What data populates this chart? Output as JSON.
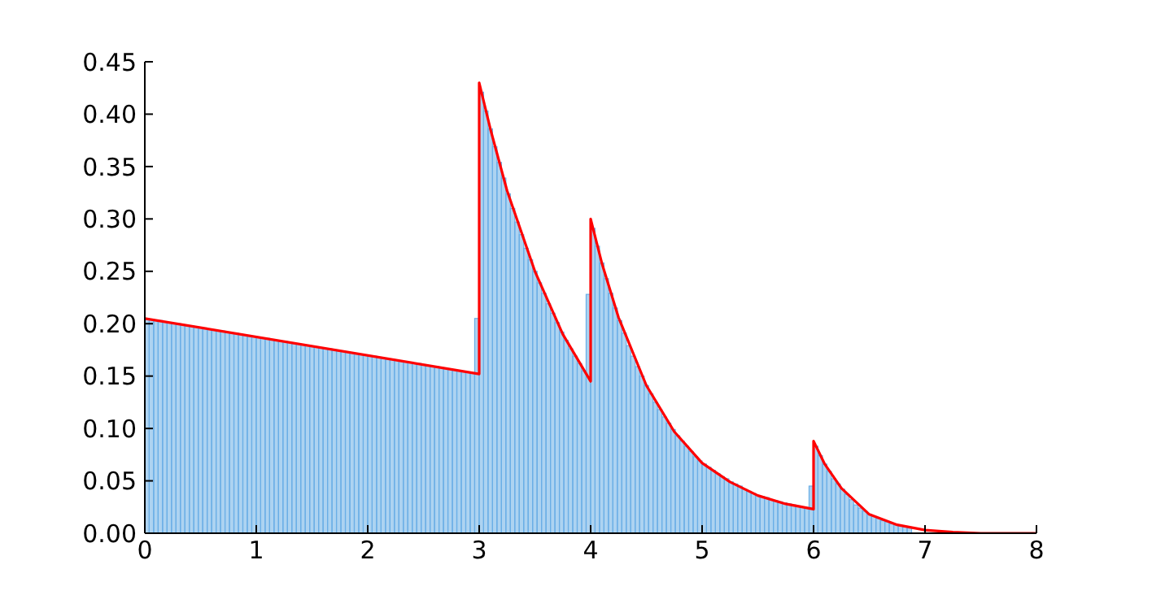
{
  "chart_data": {
    "type": "histogram",
    "color": "#6aaee6",
    "bins": [
      0,
      0.04,
      0.08,
      0.12,
      0.16,
      0.2,
      0.24,
      0.28,
      0.32,
      0.36,
      0.4,
      0.44,
      0.48,
      0.52,
      0.56,
      0.6,
      0.64,
      0.68,
      0.72,
      0.76,
      0.8,
      0.84,
      0.88,
      0.92,
      0.96,
      1,
      1.04,
      1.08,
      1.12,
      1.16,
      1.2,
      1.24,
      1.28,
      1.32,
      1.36,
      1.4,
      1.44,
      1.48,
      1.52,
      1.56,
      1.6,
      1.64,
      1.68,
      1.72,
      1.76,
      1.8,
      1.84,
      1.88,
      1.92,
      1.96,
      2,
      2.04,
      2.08,
      2.12,
      2.16,
      2.2,
      2.24,
      2.28,
      2.32,
      2.36,
      2.4,
      2.44,
      2.48,
      2.52,
      2.56,
      2.6,
      2.64,
      2.68,
      2.72,
      2.76,
      2.8,
      2.84,
      2.88,
      2.92,
      2.96,
      3,
      3.04,
      3.08,
      3.12,
      3.16,
      3.2,
      3.24,
      3.28,
      3.32,
      3.36,
      3.4,
      3.44,
      3.48,
      3.52,
      3.56,
      3.6,
      3.64,
      3.68,
      3.72,
      3.76,
      3.8,
      3.84,
      3.88,
      3.92,
      3.96,
      4,
      4.04,
      4.08,
      4.12,
      4.16,
      4.2,
      4.24,
      4.28,
      4.32,
      4.36,
      4.4,
      4.44,
      4.48,
      4.52,
      4.56,
      4.6,
      4.64,
      4.68,
      4.72,
      4.76,
      4.8,
      4.84,
      4.88,
      4.92,
      4.96,
      5,
      5.04,
      5.08,
      5.12,
      5.16,
      5.2,
      5.24,
      5.28,
      5.32,
      5.36,
      5.4,
      5.44,
      5.48,
      5.52,
      5.56,
      5.6,
      5.64,
      5.68,
      5.72,
      5.76,
      5.8,
      5.84,
      5.88,
      5.92,
      5.96,
      6,
      6.04,
      6.08,
      6.12,
      6.16,
      6.2,
      6.24,
      6.28,
      6.32,
      6.36,
      6.4,
      6.44,
      6.48,
      6.52,
      6.56,
      6.6,
      6.64,
      6.68,
      6.72,
      6.76,
      6.8,
      6.84,
      6.88,
      6.92,
      6.96,
      7,
      7.04,
      7.08,
      7.12,
      7.16,
      7.2,
      7.24,
      7.28,
      7.32,
      7.36,
      7.4,
      7.44,
      7.48,
      7.52,
      7.56,
      7.6,
      7.64,
      7.68,
      7.72,
      7.76,
      7.8,
      7.84,
      7.88,
      7.92,
      7.96,
      8
    ],
    "values": [
      0.205,
      0.204,
      0.203,
      0.203,
      0.202,
      0.201,
      0.2,
      0.2,
      0.199,
      0.198,
      0.198,
      0.197,
      0.196,
      0.195,
      0.195,
      0.194,
      0.193,
      0.193,
      0.192,
      0.191,
      0.191,
      0.19,
      0.189,
      0.188,
      0.188,
      0.187,
      0.186,
      0.186,
      0.185,
      0.184,
      0.183,
      0.183,
      0.182,
      0.181,
      0.181,
      0.18,
      0.179,
      0.178,
      0.178,
      0.177,
      0.176,
      0.176,
      0.175,
      0.174,
      0.174,
      0.173,
      0.172,
      0.171,
      0.171,
      0.17,
      0.169,
      0.169,
      0.168,
      0.167,
      0.166,
      0.166,
      0.165,
      0.164,
      0.164,
      0.163,
      0.162,
      0.162,
      0.161,
      0.16,
      0.159,
      0.159,
      0.158,
      0.157,
      0.157,
      0.156,
      0.155,
      0.154,
      0.154,
      0.153,
      0.205,
      0.421,
      0.403,
      0.386,
      0.369,
      0.354,
      0.339,
      0.324,
      0.31,
      0.297,
      0.285,
      0.272,
      0.261,
      0.25,
      0.239,
      0.229,
      0.219,
      0.21,
      0.201,
      0.192,
      0.184,
      0.176,
      0.169,
      0.162,
      0.155,
      0.228,
      0.291,
      0.274,
      0.258,
      0.243,
      0.229,
      0.215,
      0.203,
      0.191,
      0.179,
      0.169,
      0.159,
      0.15,
      0.141,
      0.133,
      0.125,
      0.118,
      0.111,
      0.105,
      0.099,
      0.093,
      0.088,
      0.083,
      0.078,
      0.073,
      0.069,
      0.066,
      0.063,
      0.06,
      0.057,
      0.054,
      0.052,
      0.049,
      0.047,
      0.045,
      0.042,
      0.04,
      0.038,
      0.036,
      0.035,
      0.034,
      0.032,
      0.031,
      0.03,
      0.029,
      0.028,
      0.027,
      0.026,
      0.025,
      0.024,
      0.045,
      0.083,
      0.074,
      0.066,
      0.059,
      0.052,
      0.047,
      0.042,
      0.037,
      0.032,
      0.027,
      0.024,
      0.021,
      0.018,
      0.016,
      0.014,
      0.012,
      0.011,
      0.009,
      0.008,
      0.007,
      0.006,
      0.005,
      null,
      null,
      null,
      null,
      null,
      null,
      0.002,
      0.001,
      0.001,
      0.001,
      0.001,
      0.001,
      0.001,
      0,
      0,
      0,
      0,
      0,
      0,
      0,
      0,
      0,
      0,
      0,
      0,
      0,
      0,
      0
    ],
    "series": [
      {
        "type": "line",
        "color": "#ff0000",
        "x": [
          0,
          3,
          3,
          3.1,
          3.25,
          3.5,
          3.75,
          4,
          4,
          4.1,
          4.25,
          4.5,
          4.75,
          5,
          5.25,
          5.5,
          5.75,
          6,
          6,
          6.1,
          6.25,
          6.5,
          6.75,
          7,
          7.25,
          7.5,
          8
        ],
        "values": [
          0.205,
          0.152,
          0.43,
          0.386,
          0.327,
          0.25,
          0.19,
          0.145,
          0.3,
          0.258,
          0.206,
          0.141,
          0.097,
          0.067,
          0.049,
          0.036,
          0.028,
          0.023,
          0.088,
          0.066,
          0.043,
          0.018,
          0.008,
          0.003,
          0.001,
          0,
          0
        ]
      }
    ],
    "xlim": [
      0,
      8
    ],
    "xticks": [
      0,
      1,
      2,
      3,
      4,
      5,
      6,
      7,
      8
    ],
    "ylim": [
      0,
      0.45
    ],
    "yticks": [
      {
        "value": 0,
        "label": "0.00"
      },
      {
        "value": 0.05,
        "label": "0.05"
      },
      {
        "value": 0.1,
        "label": "0.10"
      },
      {
        "value": 0.15,
        "label": "0.15"
      },
      {
        "value": 0.2,
        "label": "0.20"
      },
      {
        "value": 0.25,
        "label": "0.25"
      },
      {
        "value": 0.3,
        "label": "0.30"
      },
      {
        "value": 0.35,
        "label": "0.35"
      },
      {
        "value": 0.4,
        "label": "0.40"
      },
      {
        "value": 0.45,
        "label": "0.45"
      }
    ]
  }
}
